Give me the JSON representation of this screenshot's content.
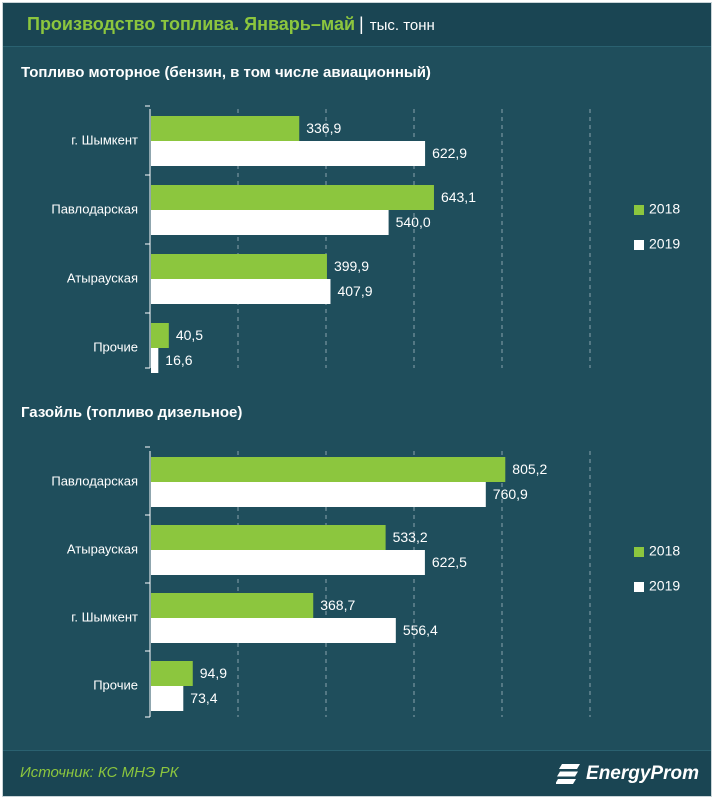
{
  "header": {
    "title": "Производство топлива. Январь–май",
    "unit": "тыс. тонн"
  },
  "footer": {
    "source": "Источник: КС МНЭ РК",
    "logo": "EnergyProm"
  },
  "colors": {
    "series_2018": "#8cc63e",
    "series_2019": "#ffffff",
    "background": "#1f4e5c",
    "grid": "#8aa3ab"
  },
  "chart_data": [
    {
      "type": "bar",
      "orientation": "horizontal",
      "title": "Топливо моторное (бензин, в том числе авиационный)",
      "categories": [
        "г. Шымкент",
        "Павлодарская",
        "Атырауская",
        "Прочие"
      ],
      "series": [
        {
          "name": "2018",
          "values": [
            336.9,
            643.1,
            399.9,
            40.5
          ],
          "labels": [
            "336,9",
            "643,1",
            "399,9",
            "40,5"
          ]
        },
        {
          "name": "2019",
          "values": [
            622.9,
            540.0,
            407.9,
            16.6
          ],
          "labels": [
            "622,9",
            "540,0",
            "407,9",
            "16,6"
          ]
        }
      ],
      "xlim": [
        0,
        1000
      ],
      "grid": true,
      "legend": "right"
    },
    {
      "type": "bar",
      "orientation": "horizontal",
      "title": "Газойль (топливо дизельное)",
      "categories": [
        "Павлодарская",
        "Атырауская",
        "г. Шымкент",
        "Прочие"
      ],
      "series": [
        {
          "name": "2018",
          "values": [
            805.2,
            533.2,
            368.7,
            94.9
          ],
          "labels": [
            "805,2",
            "533,2",
            "368,7",
            "94,9"
          ]
        },
        {
          "name": "2019",
          "values": [
            760.9,
            622.5,
            556.4,
            73.4
          ],
          "labels": [
            "760,9",
            "622,5",
            "556,4",
            "73,4"
          ]
        }
      ],
      "xlim": [
        0,
        1000
      ],
      "grid": true,
      "legend": "right"
    }
  ]
}
